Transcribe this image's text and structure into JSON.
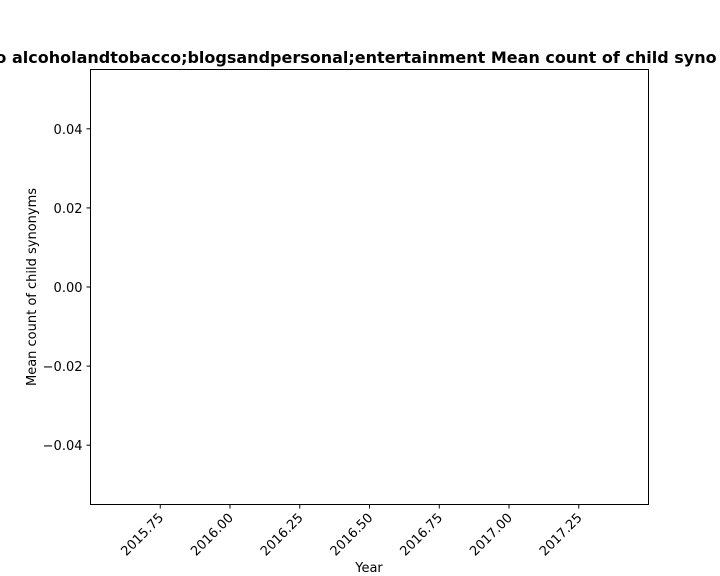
{
  "chart_data": {
    "type": "line",
    "title": "o alcoholandtobacco;blogsandpersonal;entertainment Mean count of child syno",
    "xlabel": "Year",
    "ylabel": "Mean count of child synonyms",
    "xlim": [
      2015.5,
      2017.5
    ],
    "ylim": [
      -0.055,
      0.055
    ],
    "x_ticks": [
      2015.75,
      2016.0,
      2016.25,
      2016.5,
      2016.75,
      2017.0,
      2017.25
    ],
    "x_tick_labels": [
      "2015.75",
      "2016.00",
      "2016.25",
      "2016.50",
      "2016.75",
      "2017.00",
      "2017.25"
    ],
    "y_ticks": [
      0.04,
      0.02,
      0.0,
      -0.02,
      -0.04
    ],
    "y_tick_labels": [
      "0.04",
      "0.02",
      "0.00",
      "−0.02",
      "−0.04"
    ],
    "grid": false,
    "series": []
  }
}
